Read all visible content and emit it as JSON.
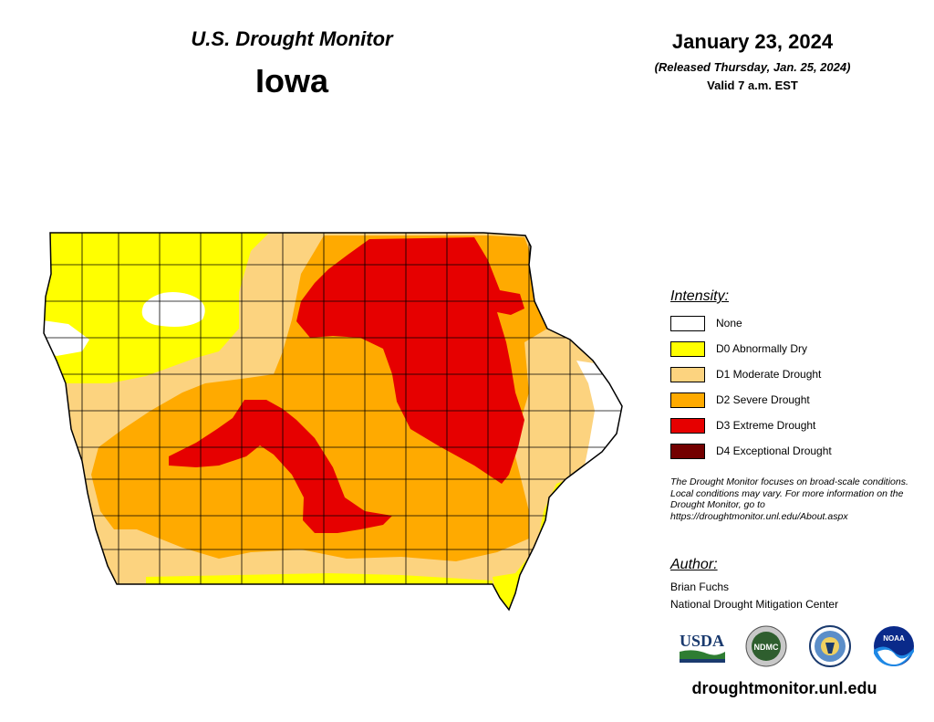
{
  "header": {
    "monitor_title": "U.S. Drought Monitor",
    "state": "Iowa",
    "date": "January 23, 2024",
    "released": "(Released Thursday, Jan. 25, 2024)",
    "valid": "Valid 7 a.m. EST"
  },
  "legend": {
    "title": "Intensity:",
    "items": [
      {
        "label": "None",
        "color": "#ffffff"
      },
      {
        "label": "D0 Abnormally Dry",
        "color": "#ffff00"
      },
      {
        "label": "D1 Moderate Drought",
        "color": "#fcd37f"
      },
      {
        "label": "D2 Severe Drought",
        "color": "#ffaa00"
      },
      {
        "label": "D3 Extreme Drought",
        "color": "#e60000"
      },
      {
        "label": "D4 Exceptional Drought",
        "color": "#730000"
      }
    ]
  },
  "note": "The Drought Monitor focuses on broad-scale conditions. Local conditions may vary. For more information on the Drought Monitor, go to https://droughtmonitor.unl.edu/About.aspx",
  "author": {
    "title": "Author:",
    "name": "Brian Fuchs",
    "org": "National Drought Mitigation Center"
  },
  "logos": {
    "usda": "USDA",
    "ndmc": "NDMC",
    "noaa": "NOAA"
  },
  "website": "droughtmonitor.unl.edu"
}
